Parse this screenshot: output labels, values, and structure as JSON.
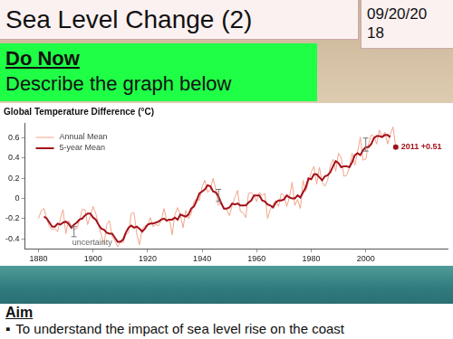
{
  "slide": {
    "title": "Sea Level Change (2)",
    "date": "09/20/2018",
    "do_now": {
      "heading": "Do Now",
      "text": "Describe the graph below"
    },
    "aim": {
      "heading": "Aim",
      "points": [
        "To understand the impact of sea level rise on the coast"
      ]
    }
  },
  "chart_data": {
    "type": "line",
    "title": "Global Temperature Difference (°C)",
    "x": [
      1880,
      1881,
      1882,
      1883,
      1884,
      1885,
      1886,
      1887,
      1888,
      1889,
      1890,
      1891,
      1892,
      1893,
      1894,
      1895,
      1896,
      1897,
      1898,
      1899,
      1900,
      1901,
      1902,
      1903,
      1904,
      1905,
      1906,
      1907,
      1908,
      1909,
      1910,
      1911,
      1912,
      1913,
      1914,
      1915,
      1916,
      1917,
      1918,
      1919,
      1920,
      1921,
      1922,
      1923,
      1924,
      1925,
      1926,
      1927,
      1928,
      1929,
      1930,
      1931,
      1932,
      1933,
      1934,
      1935,
      1936,
      1937,
      1938,
      1939,
      1940,
      1941,
      1942,
      1943,
      1944,
      1945,
      1946,
      1947,
      1948,
      1949,
      1950,
      1951,
      1952,
      1953,
      1954,
      1955,
      1956,
      1957,
      1958,
      1959,
      1960,
      1961,
      1962,
      1963,
      1964,
      1965,
      1966,
      1967,
      1968,
      1969,
      1970,
      1971,
      1972,
      1973,
      1974,
      1975,
      1976,
      1977,
      1978,
      1979,
      1980,
      1981,
      1982,
      1983,
      1984,
      1985,
      1986,
      1987,
      1988,
      1989,
      1990,
      1991,
      1992,
      1993,
      1994,
      1995,
      1996,
      1997,
      1998,
      1999,
      2000,
      2001,
      2002,
      2003,
      2004,
      2005,
      2006,
      2007,
      2008,
      2009,
      2010,
      2011
    ],
    "series": [
      {
        "name": "Annual Mean",
        "color": "#f2a58a",
        "values": [
          -0.2,
          -0.12,
          -0.1,
          -0.2,
          -0.28,
          -0.31,
          -0.3,
          -0.33,
          -0.2,
          -0.11,
          -0.35,
          -0.22,
          -0.27,
          -0.31,
          -0.3,
          -0.22,
          -0.11,
          -0.11,
          -0.26,
          -0.17,
          -0.08,
          -0.15,
          -0.27,
          -0.36,
          -0.46,
          -0.26,
          -0.22,
          -0.38,
          -0.42,
          -0.48,
          -0.43,
          -0.44,
          -0.36,
          -0.34,
          -0.15,
          -0.14,
          -0.35,
          -0.46,
          -0.3,
          -0.27,
          -0.27,
          -0.19,
          -0.28,
          -0.26,
          -0.27,
          -0.22,
          -0.1,
          -0.22,
          -0.2,
          -0.36,
          -0.16,
          -0.09,
          -0.16,
          -0.29,
          -0.12,
          -0.2,
          -0.15,
          -0.03,
          0,
          -0.02,
          0.12,
          0.18,
          0.06,
          0.09,
          0.2,
          0.09,
          -0.07,
          -0.03,
          -0.11,
          -0.11,
          -0.17,
          -0.07,
          0.01,
          0.08,
          -0.13,
          -0.14,
          -0.19,
          0.05,
          0.06,
          0.03,
          -0.03,
          0.06,
          0.03,
          0.05,
          -0.2,
          -0.11,
          -0.06,
          -0.02,
          -0.08,
          0.05,
          0.03,
          -0.08,
          0.01,
          0.16,
          -0.07,
          -0.01,
          -0.1,
          0.18,
          0.07,
          0.16,
          0.26,
          0.32,
          0.14,
          0.31,
          0.16,
          0.12,
          0.18,
          0.32,
          0.39,
          0.27,
          0.45,
          0.4,
          0.22,
          0.23,
          0.31,
          0.45,
          0.33,
          0.46,
          0.61,
          0.38,
          0.39,
          0.54,
          0.63,
          0.62,
          0.54,
          0.68,
          0.61,
          0.66,
          0.54,
          0.64,
          0.71,
          0.51
        ]
      },
      {
        "name": "5-year Mean",
        "color": "#a3101a",
        "values": [
          null,
          null,
          -0.18,
          -0.2,
          -0.24,
          -0.28,
          -0.28,
          -0.25,
          -0.26,
          -0.24,
          -0.23,
          -0.25,
          -0.29,
          -0.26,
          -0.24,
          -0.21,
          -0.2,
          -0.17,
          -0.15,
          -0.15,
          -0.19,
          -0.21,
          -0.26,
          -0.3,
          -0.31,
          -0.34,
          -0.35,
          -0.35,
          -0.39,
          -0.43,
          -0.43,
          -0.41,
          -0.34,
          -0.29,
          -0.27,
          -0.29,
          -0.28,
          -0.3,
          -0.33,
          -0.3,
          -0.26,
          -0.25,
          -0.25,
          -0.24,
          -0.23,
          -0.21,
          -0.2,
          -0.22,
          -0.21,
          -0.21,
          -0.19,
          -0.21,
          -0.16,
          -0.17,
          -0.18,
          -0.16,
          -0.1,
          -0.08,
          -0.02,
          0.05,
          0.07,
          0.09,
          0.13,
          0.12,
          0.07,
          0.06,
          0.02,
          -0.05,
          -0.1,
          -0.1,
          -0.09,
          -0.05,
          -0.06,
          -0.05,
          -0.07,
          -0.07,
          -0.07,
          -0.04,
          -0.02,
          0.03,
          0.03,
          0.03,
          -0.02,
          -0.03,
          -0.06,
          -0.07,
          -0.09,
          -0.04,
          -0.02,
          -0.02,
          -0.01,
          0.03,
          0.01,
          0,
          0,
          0.03,
          0.01,
          0.06,
          0.11,
          0.2,
          0.19,
          0.24,
          0.24,
          0.21,
          0.18,
          0.22,
          0.23,
          0.26,
          0.32,
          0.37,
          0.35,
          0.31,
          0.32,
          0.32,
          0.31,
          0.36,
          0.43,
          0.45,
          0.43,
          0.48,
          0.51,
          0.51,
          0.54,
          0.6,
          0.62,
          0.62,
          0.61,
          0.63,
          0.63,
          0.61,
          null,
          null
        ]
      }
    ],
    "xlim": [
      1875,
      2030
    ],
    "xticks": [
      1880,
      1900,
      1920,
      1940,
      1960,
      1980,
      2000
    ],
    "ylim": [
      -0.5,
      0.75
    ],
    "yticks": [
      -0.4,
      -0.2,
      0,
      0.2,
      0.4,
      0.6
    ],
    "grid": false,
    "legend": "upper left",
    "error_bars": {
      "label": "uncertainty",
      "bars": [
        {
          "x": 1893,
          "low": -0.38,
          "high": -0.28
        },
        {
          "x": 1946,
          "low": -0.03,
          "high": 0.09
        },
        {
          "x": 2000,
          "low": 0.47,
          "high": 0.6
        }
      ]
    },
    "annotations": [
      {
        "x": 2011,
        "y": 0.51,
        "text": "2011 +0.51",
        "color": "#a3101a"
      }
    ]
  }
}
